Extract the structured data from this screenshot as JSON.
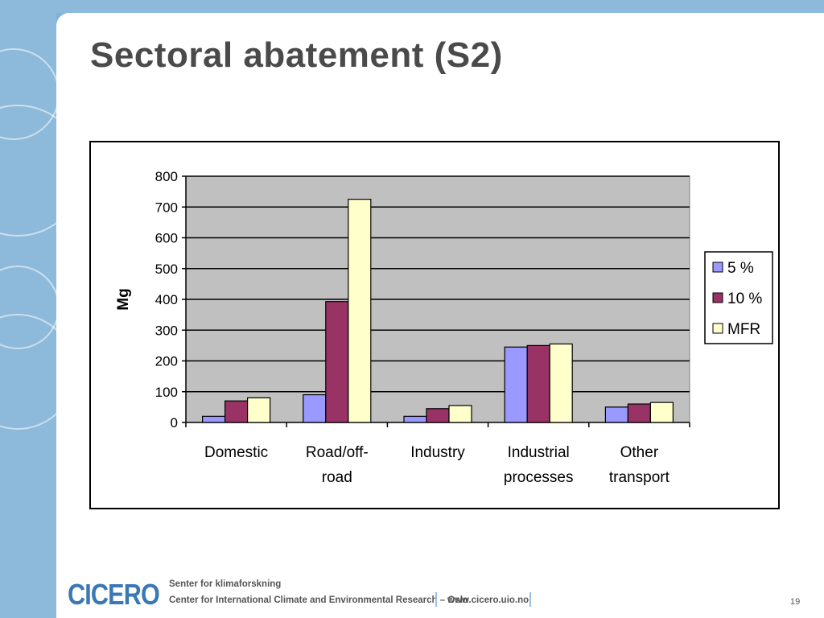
{
  "slide": {
    "title": "Sectoral abatement (S2)",
    "page_number": "19"
  },
  "footer": {
    "logo": "CICERO",
    "org_line1": "Senter for klimaforskning",
    "org_line2": "Center for International Climate and Environmental Research – Oslo",
    "url": "www.cicero.uio.no"
  },
  "colors": {
    "series_5": "#9999ff",
    "series_10": "#993366",
    "series_mfr": "#ffffcc",
    "plot_bg": "#c0c0c0",
    "title": "#4a4a4a",
    "logo": "#3a78b5"
  },
  "chart_data": {
    "type": "bar",
    "title": "",
    "xlabel": "",
    "ylabel": "Mg",
    "ylim": [
      0,
      800
    ],
    "yticks": [
      0,
      100,
      200,
      300,
      400,
      500,
      600,
      700,
      800
    ],
    "grid": true,
    "legend_position": "right",
    "categories": [
      [
        "Domestic"
      ],
      [
        "Road/off-",
        "road"
      ],
      [
        "Industry"
      ],
      [
        "Industrial",
        "processes"
      ],
      [
        "Other",
        "transport"
      ]
    ],
    "series": [
      {
        "name": "5 %",
        "color": "#9999ff",
        "values": [
          20,
          90,
          20,
          245,
          50
        ]
      },
      {
        "name": "10 %",
        "color": "#993366",
        "values": [
          70,
          393,
          45,
          250,
          60
        ]
      },
      {
        "name": "MFR",
        "color": "#ffffcc",
        "values": [
          80,
          725,
          55,
          255,
          65
        ]
      }
    ]
  }
}
